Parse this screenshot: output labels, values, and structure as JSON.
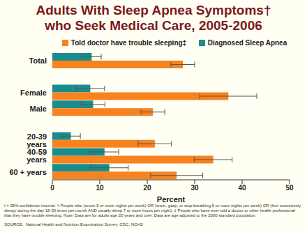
{
  "chart_data": {
    "type": "bar",
    "orientation": "horizontal",
    "title": "Adults With Sleep Apnea Symptoms† who Seek Medical Care, 2005-2006",
    "categories": [
      "Total",
      null,
      "Female",
      "Male",
      null,
      "20-39 years",
      "40-59 years",
      "60 + years"
    ],
    "series": [
      {
        "name": "Told doctor have trouble sleeping‡",
        "color": "#F7821E",
        "values": [
          27.5,
          null,
          37.1,
          21.2,
          null,
          21.6,
          33.9,
          26.2
        ],
        "errors": [
          2.5,
          null,
          6,
          2.5,
          null,
          3.5,
          4,
          5.5
        ]
      },
      {
        "name": "Diagnosed Sleep Apnea",
        "color": "#1A8C8C",
        "values": [
          8.3,
          null,
          8.0,
          8.6,
          null,
          3.9,
          11.0,
          12.0
        ],
        "errors": [
          2,
          null,
          3,
          2.5,
          null,
          2,
          3,
          4
        ]
      }
    ],
    "xlabel": "Percent",
    "xlim": [
      0,
      50
    ],
    "xticks": [
      0,
      10,
      20,
      30,
      40,
      50
    ],
    "grid": false,
    "legend": "top",
    "notes": "I = 95% confidence interval. † People who (snore 5 or more nights per week) OR (snort, gasp, or stop breathing 5 or more nights per week) OR (feel excessively sleepy during the day 16-30 times per month AND usually sleep 7 or more hours per night). ‡ People who have ever told a doctor or other health professional that they have trouble sleeping. Note: Data are for adults age 20 years and over. Data are age adjusted to the 2000 standard population.",
    "source": "SOURCE:  National Health and Nutrition Examination Survey, CDC, NCHS"
  }
}
